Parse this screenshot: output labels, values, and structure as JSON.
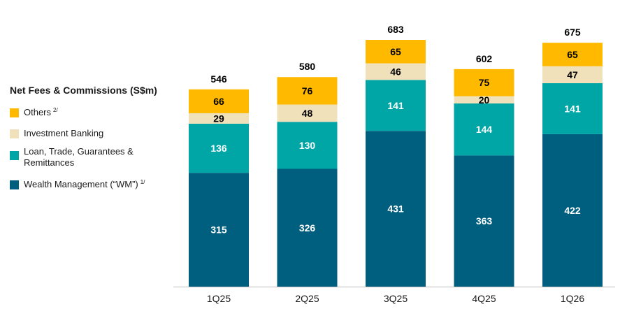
{
  "chart_data": {
    "type": "bar",
    "stacked": true,
    "title": "Net Fees & Commissions (S$m)",
    "categories": [
      "1Q25",
      "2Q25",
      "3Q25",
      "4Q25",
      "1Q26"
    ],
    "totals": [
      546,
      580,
      683,
      602,
      675
    ],
    "series": [
      {
        "name": "Wealth Management (“WM”)",
        "footnote": "1/",
        "color": "#005E7F",
        "values": [
          315,
          326,
          431,
          363,
          422
        ]
      },
      {
        "name": "Loan, Trade, Guarantees & Remittances",
        "footnote": "",
        "color": "#00A5A5",
        "values": [
          136,
          130,
          141,
          144,
          141
        ]
      },
      {
        "name": "Investment Banking",
        "footnote": "",
        "color": "#F1E1BA",
        "values": [
          29,
          48,
          46,
          20,
          47
        ]
      },
      {
        "name": "Others",
        "footnote": "2/",
        "color": "#FFBA00",
        "values": [
          66,
          76,
          65,
          75,
          65
        ]
      }
    ],
    "ylim": [
      0,
      683
    ],
    "grid": false,
    "legend_position": "left"
  },
  "legend": {
    "title": "Net Fees & Commissions (S$m)",
    "items": [
      {
        "label": "Others",
        "footnote": "2/",
        "color": "#FFBA00"
      },
      {
        "label": "Investment Banking",
        "footnote": "",
        "color": "#F1E1BA"
      },
      {
        "label": "Loan, Trade, Guarantees & Remittances",
        "footnote": "",
        "color": "#00A5A5"
      },
      {
        "label": "Wealth Management (“WM”)",
        "footnote": "1/",
        "color": "#005E7F"
      }
    ]
  }
}
